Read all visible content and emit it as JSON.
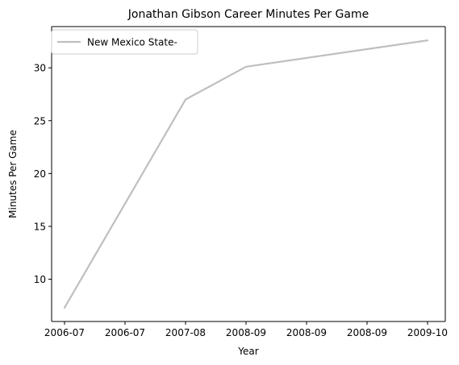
{
  "chart_data": {
    "type": "line",
    "title": "Jonathan Gibson  Career Minutes Per Game",
    "xlabel": "Year",
    "ylabel": "Minutes Per Game",
    "x_tick_labels": [
      "2006-07",
      "2006-07",
      "2007-08",
      "2008-09",
      "2008-09",
      "2008-09",
      "2009-10"
    ],
    "y_ticks": [
      10,
      15,
      20,
      25,
      30
    ],
    "ylim": [
      6.0,
      33.9
    ],
    "grid": false,
    "legend_position": "upper-left",
    "series": [
      {
        "name": "New Mexico State-",
        "color": "#bfbfbf",
        "x": [
          "2006-07",
          "2007-08",
          "2008-09",
          "2009-10"
        ],
        "values": [
          7.3,
          27.0,
          30.1,
          32.6
        ]
      }
    ]
  }
}
